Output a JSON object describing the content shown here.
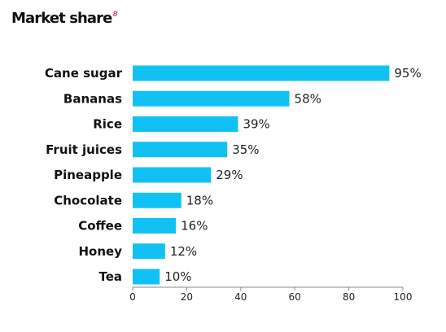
{
  "chart_data": {
    "type": "bar",
    "orientation": "horizontal",
    "title": "Market share",
    "title_note": "8",
    "categories": [
      "Cane sugar",
      "Bananas",
      "Rice",
      "Fruit juices",
      "Pineapple",
      "Chocolate",
      "Coffee",
      "Honey",
      "Tea"
    ],
    "values": [
      95,
      58,
      39,
      35,
      29,
      18,
      16,
      12,
      10
    ],
    "value_labels": [
      "95%",
      "58%",
      "39%",
      "35%",
      "29%",
      "18%",
      "16%",
      "12%",
      "10%"
    ],
    "xlim": [
      0,
      100
    ],
    "xticks": [
      "0",
      "20",
      "40",
      "60",
      "80",
      "100"
    ],
    "xlabel": "",
    "ylabel": "",
    "grid": false,
    "legend": "none",
    "bar_color": "#12c1f4",
    "title_note_color": "#e0467a"
  }
}
